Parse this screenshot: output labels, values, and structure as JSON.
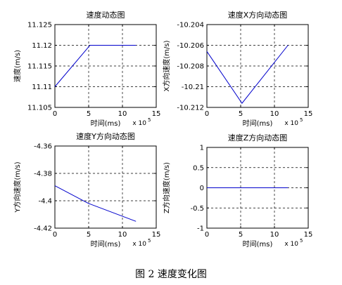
{
  "caption": "图 2 速度变化图",
  "chart_data": [
    {
      "type": "line",
      "title": "速度动态图",
      "xlabel": "时间(ms)",
      "ylabel": "速度(m/s)",
      "x_exponent": "x 10",
      "x_exponent_power": "5",
      "xlim": [
        0,
        15
      ],
      "ylim": [
        11.105,
        11.125
      ],
      "xticks": [
        "0",
        "5",
        "10",
        "15"
      ],
      "yticks": [
        "11.105",
        "11.11",
        "11.115",
        "11.12",
        "11.125"
      ],
      "grid": true,
      "series": [
        {
          "x": [
            0,
            5.2,
            12
          ],
          "y": [
            11.11,
            11.12,
            11.12
          ]
        }
      ]
    },
    {
      "type": "line",
      "title": "速度X方向动态图",
      "xlabel": "时间(ms)",
      "ylabel": "X方向速度(m/s)",
      "x_exponent": "x 10",
      "x_exponent_power": "5",
      "xlim": [
        0,
        15
      ],
      "ylim": [
        -10.212,
        -10.204
      ],
      "xticks": [
        "0",
        "5",
        "10",
        "15"
      ],
      "yticks": [
        "-10.212",
        "-10.21",
        "-10.208",
        "-10.206",
        "-10.204"
      ],
      "grid": true,
      "series": [
        {
          "x": [
            0,
            5.2,
            12
          ],
          "y": [
            -10.2066,
            -10.2116,
            -10.206
          ]
        }
      ]
    },
    {
      "type": "line",
      "title": "速度Y方向动态图",
      "xlabel": "时间(ms)",
      "ylabel": "Y方向速度(m/s)",
      "x_exponent": "x 10",
      "x_exponent_power": "5",
      "xlim": [
        0,
        15
      ],
      "ylim": [
        -4.42,
        -4.36
      ],
      "xticks": [
        "0",
        "5",
        "10",
        "15"
      ],
      "yticks": [
        "-4.42",
        "-4.4",
        "-4.38",
        "-4.36"
      ],
      "grid": true,
      "series": [
        {
          "x": [
            0,
            5,
            12
          ],
          "y": [
            -4.389,
            -4.402,
            -4.415
          ]
        }
      ]
    },
    {
      "type": "line",
      "title": "速度Z方向动态图",
      "xlabel": "时间(ms)",
      "ylabel": "Z方向速度(m/s)",
      "x_exponent": "x 10",
      "x_exponent_power": "5",
      "xlim": [
        0,
        15
      ],
      "ylim": [
        -1,
        1
      ],
      "xticks": [
        "0",
        "5",
        "10",
        "15"
      ],
      "yticks": [
        "-1",
        "-0.5",
        "0",
        "0.5",
        "1"
      ],
      "grid": true,
      "series": [
        {
          "x": [
            0,
            12
          ],
          "y": [
            0,
            0
          ]
        }
      ]
    }
  ],
  "colors": {
    "line": "#0000cc",
    "axis": "#000000",
    "grid": "#000000"
  }
}
